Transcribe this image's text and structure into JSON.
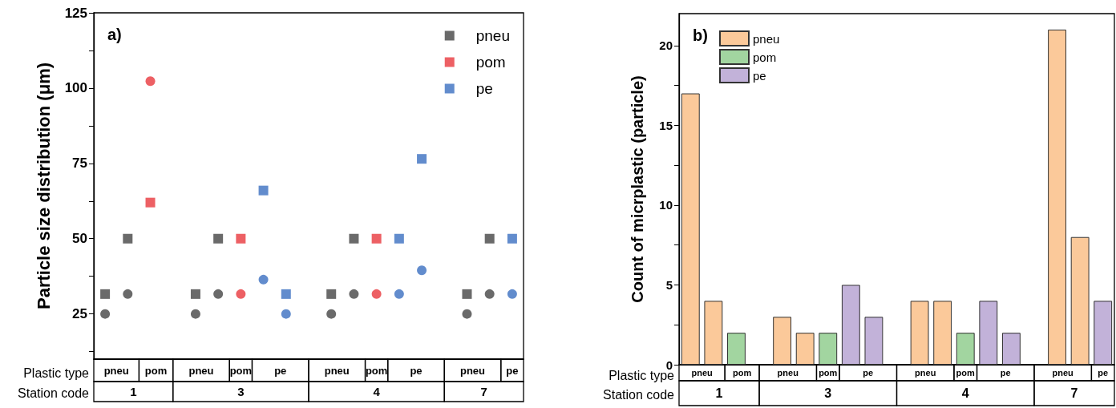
{
  "chart_data": [
    {
      "type": "scatter",
      "title": "a)",
      "ylabel": "Particle size distribution (μm)",
      "categories": [
        null,
        null,
        null,
        null,
        null,
        null,
        null,
        null,
        null,
        null,
        null,
        null,
        null,
        null,
        null,
        null,
        null,
        null,
        null
      ],
      "ylim": [
        10,
        125
      ],
      "yticks": [
        {
          "value": 12.5,
          "label": null
        },
        25,
        {
          "value": 37.5,
          "label": null
        },
        50,
        {
          "value": 62.5,
          "label": null
        },
        75,
        {
          "value": 87.5,
          "label": null
        },
        100,
        {
          "value": 112.5,
          "label": null
        },
        125
      ],
      "legend": "top right",
      "annotations": [
        "Plastic type",
        "Station code",
        "1",
        "3",
        "4",
        "7"
      ],
      "series": [
        {
          "name": "pneu",
          "color": "#454545",
          "marker": "square",
          "values": [
            31.6,
            50,
            null,
            null,
            31.6,
            50,
            null,
            null,
            null,
            null,
            31.6,
            50,
            null,
            null,
            null,
            null,
            31.6,
            50,
            null
          ]
        },
        {
          "name": "pom",
          "color": "#e8383d",
          "marker": "square",
          "values": [
            null,
            null,
            62,
            null,
            null,
            null,
            50,
            null,
            null,
            null,
            null,
            null,
            50,
            null,
            null,
            null,
            null,
            null,
            null
          ]
        },
        {
          "name": "pe",
          "color": "#3b6fc1",
          "marker": "square",
          "values": [
            null,
            null,
            null,
            null,
            null,
            null,
            null,
            66,
            31.6,
            null,
            null,
            null,
            null,
            50,
            76.5,
            null,
            null,
            null,
            50
          ]
        },
        {
          "color": "#454545",
          "marker": "circle",
          "values": [
            25,
            31.6,
            null,
            null,
            25,
            31.6,
            null,
            null,
            null,
            null,
            25,
            31.6,
            null,
            null,
            null,
            null,
            25,
            31.6,
            null
          ]
        },
        {
          "color": "#e8383d",
          "marker": "circle",
          "values": [
            null,
            null,
            102.3,
            null,
            null,
            null,
            31.6,
            null,
            null,
            null,
            null,
            null,
            31.6,
            null,
            null,
            null,
            null,
            null,
            null
          ]
        },
        {
          "color": "#3b6fc1",
          "marker": "circle",
          "values": [
            null,
            null,
            null,
            null,
            null,
            null,
            null,
            36.4,
            25,
            null,
            null,
            null,
            null,
            31.6,
            39.5,
            null,
            null,
            null,
            31.6
          ]
        }
      ]
    },
    {
      "type": "bar",
      "title": "b)",
      "ylabel": "Count of micrplastic (particle)",
      "categories": [
        null,
        null,
        null,
        null,
        null,
        null,
        null,
        null,
        null,
        null,
        null,
        null,
        null,
        null,
        null,
        null,
        null,
        null,
        null
      ],
      "ylim": [
        0,
        22
      ],
      "yticks": [
        0,
        {
          "value": 2.5,
          "label": null
        },
        5,
        {
          "value": 7.5,
          "label": null
        },
        10,
        {
          "value": 12.5,
          "label": null
        },
        15,
        {
          "value": 17.5,
          "label": null
        },
        20
      ],
      "legend": "top left",
      "annotations": [
        "Plastic type",
        "Station code",
        "1",
        "3",
        "4",
        "7"
      ],
      "series": [
        {
          "name": "pneu",
          "color": "#fbc99a",
          "values": [
            17,
            4,
            null,
            null,
            3,
            2,
            null,
            null,
            null,
            null,
            4,
            4,
            null,
            null,
            null,
            null,
            21,
            8,
            null
          ]
        },
        {
          "name": "pom",
          "color": "#a2d5a0",
          "values": [
            null,
            null,
            2,
            null,
            null,
            null,
            2,
            null,
            null,
            null,
            null,
            null,
            2,
            null,
            null,
            null,
            null,
            null,
            null
          ]
        },
        {
          "name": "pe",
          "color": "#c2b2d9",
          "values": [
            null,
            null,
            null,
            null,
            null,
            null,
            null,
            5,
            3,
            null,
            null,
            null,
            null,
            4,
            2,
            null,
            null,
            null,
            4
          ]
        }
      ]
    }
  ]
}
